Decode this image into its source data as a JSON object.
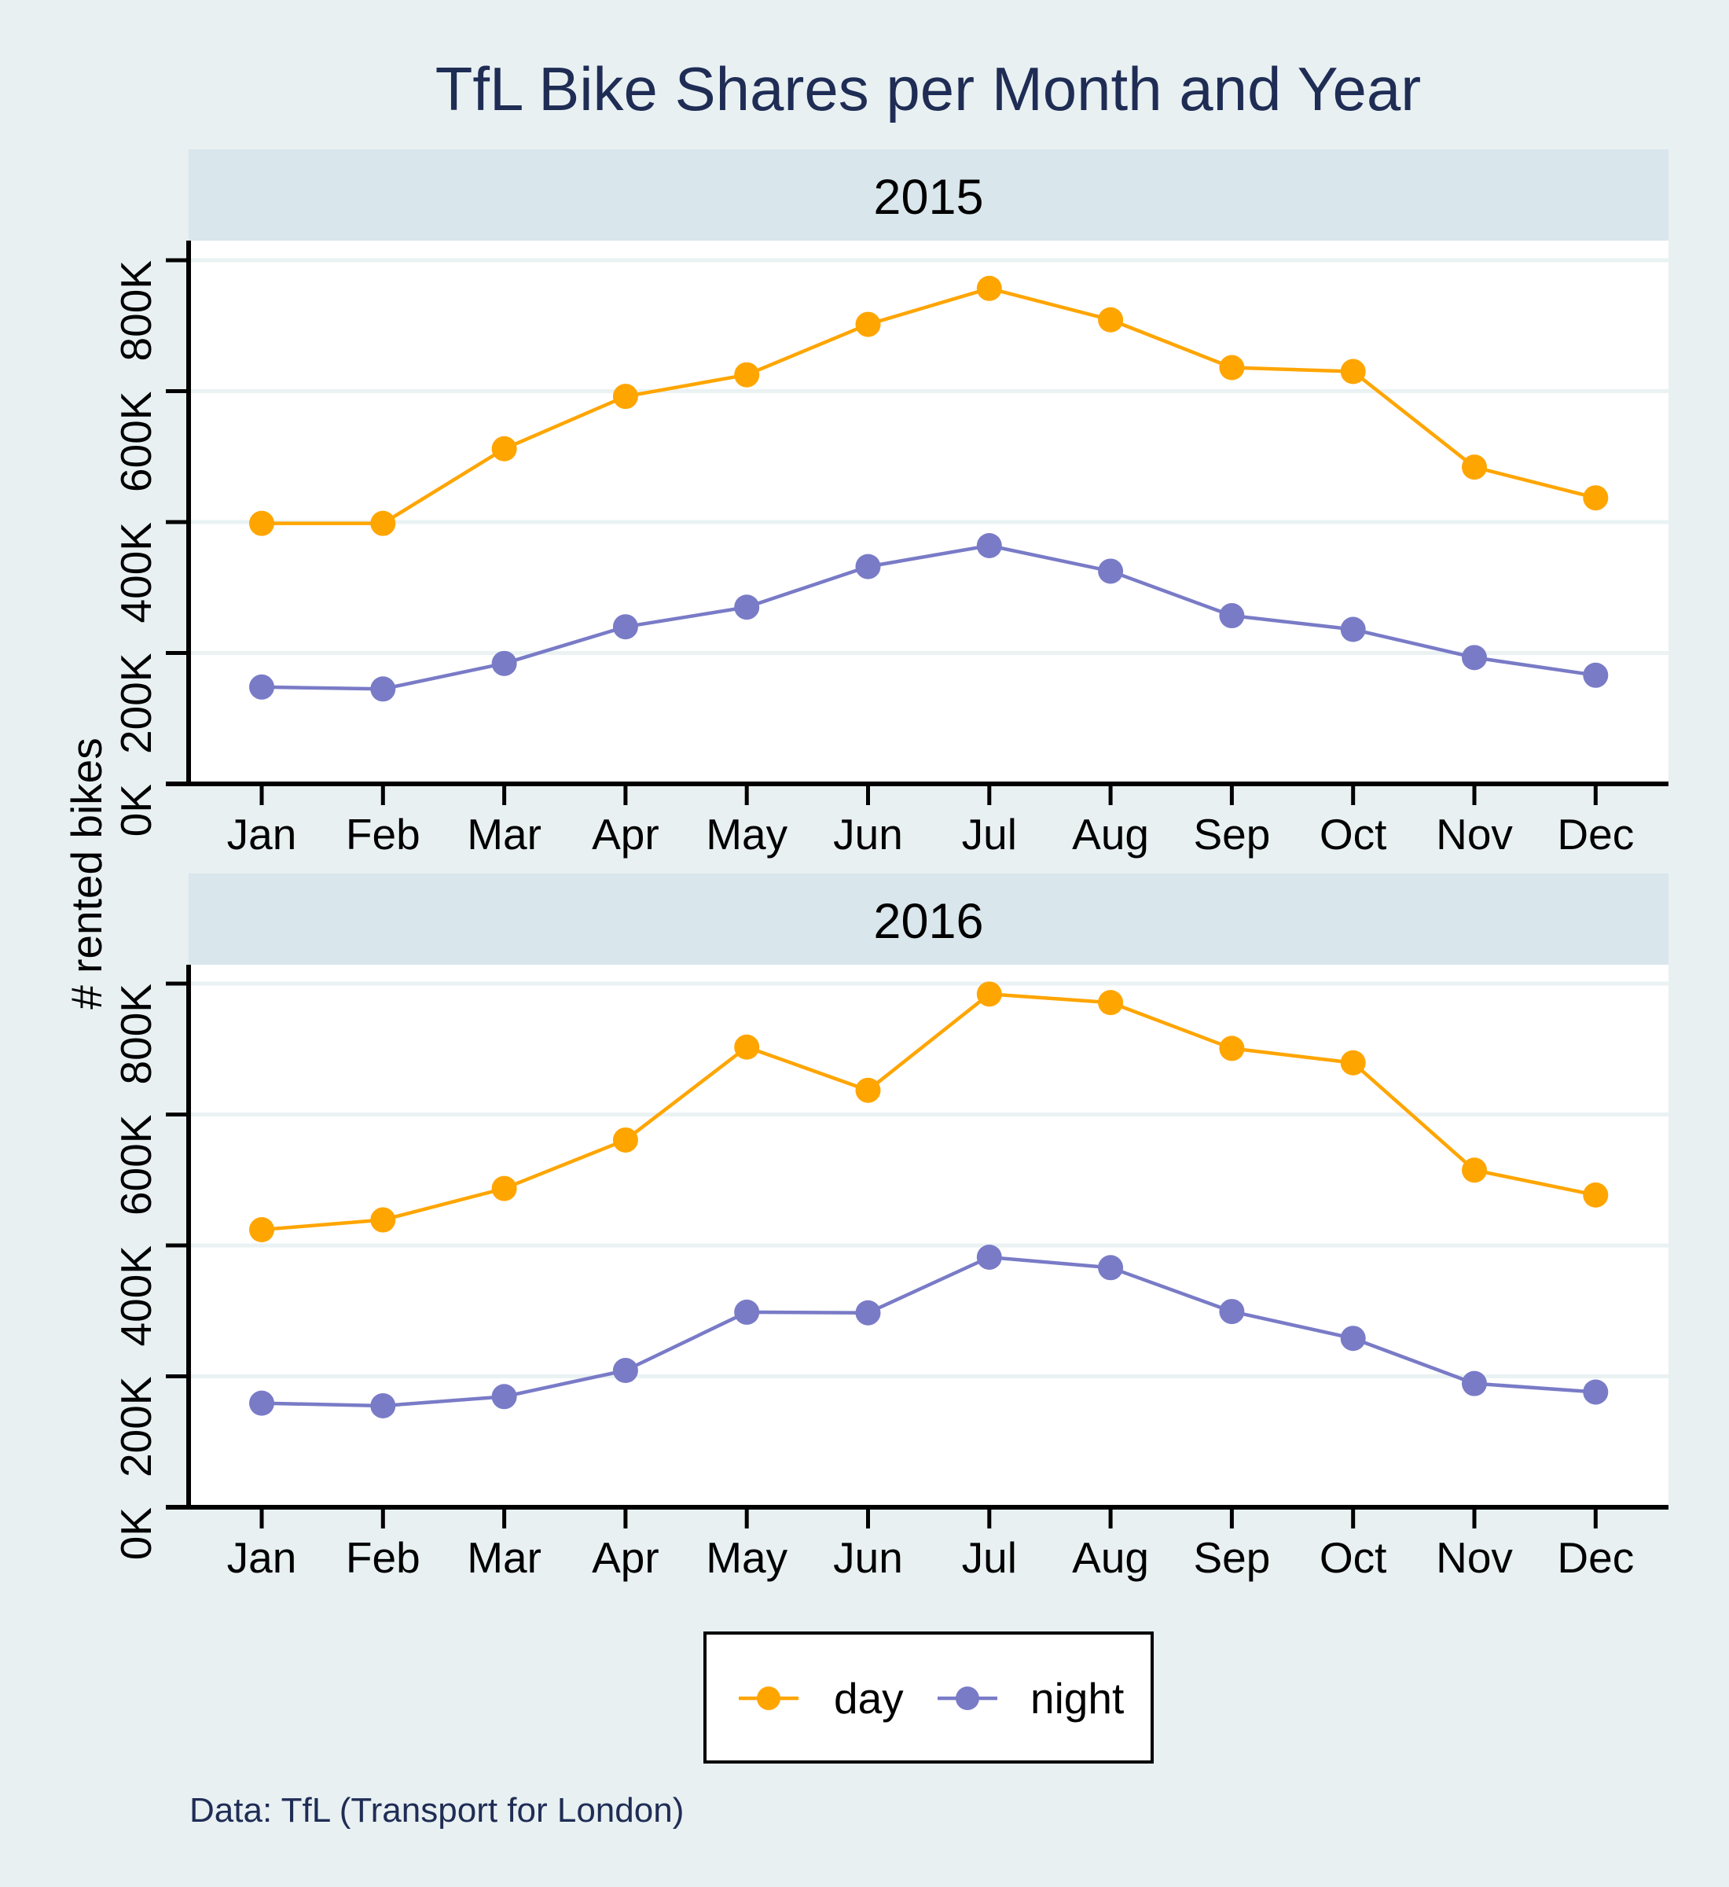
{
  "chart_data": {
    "type": "line",
    "title": "TfL Bike Shares per Month and Year",
    "ylabel": "# rented bikes",
    "xlabel": "",
    "caption": "Data: TfL (Transport for London)",
    "grid": true,
    "legend_position": "bottom",
    "ylim": [
      0,
      800000
    ],
    "yticks": [
      0,
      200000,
      400000,
      600000,
      800000
    ],
    "ytick_labels": [
      "0K",
      "200K",
      "400K",
      "600K",
      "800K"
    ],
    "categories": [
      "Jan",
      "Feb",
      "Mar",
      "Apr",
      "May",
      "Jun",
      "Jul",
      "Aug",
      "Sep",
      "Oct",
      "Nov",
      "Dec"
    ],
    "legend": [
      {
        "name": "day",
        "color": "#FFA500"
      },
      {
        "name": "night",
        "color": "#797BC7"
      }
    ],
    "panels": [
      {
        "label": "2015",
        "series": [
          {
            "name": "day",
            "color": "#FFA500",
            "values": [
              398000,
              398000,
              512000,
              592000,
              625000,
              702000,
              757000,
              709000,
              636000,
              630000,
              484000,
              437000
            ]
          },
          {
            "name": "night",
            "color": "#797BC7",
            "values": [
              148000,
              145000,
              184000,
              240000,
              270000,
              332000,
              364000,
              325000,
              257000,
              236000,
              193000,
              166000
            ]
          }
        ]
      },
      {
        "label": "2016",
        "series": [
          {
            "name": "day",
            "color": "#FFA500",
            "values": [
              424000,
              439000,
              487000,
              561000,
              703000,
              637000,
              784000,
              771000,
              701000,
              679000,
              515000,
              477000
            ]
          },
          {
            "name": "night",
            "color": "#797BC7",
            "values": [
              159000,
              155000,
              169000,
              209000,
              298000,
              297000,
              382000,
              366000,
              299000,
              258000,
              189000,
              176000
            ]
          }
        ]
      }
    ]
  },
  "colors": {
    "background": "#E8F0F2",
    "strip": "#D9E6EC",
    "plot": "#FFFFFF",
    "grid": "#EAF2F3",
    "title": "#1F2D55"
  }
}
